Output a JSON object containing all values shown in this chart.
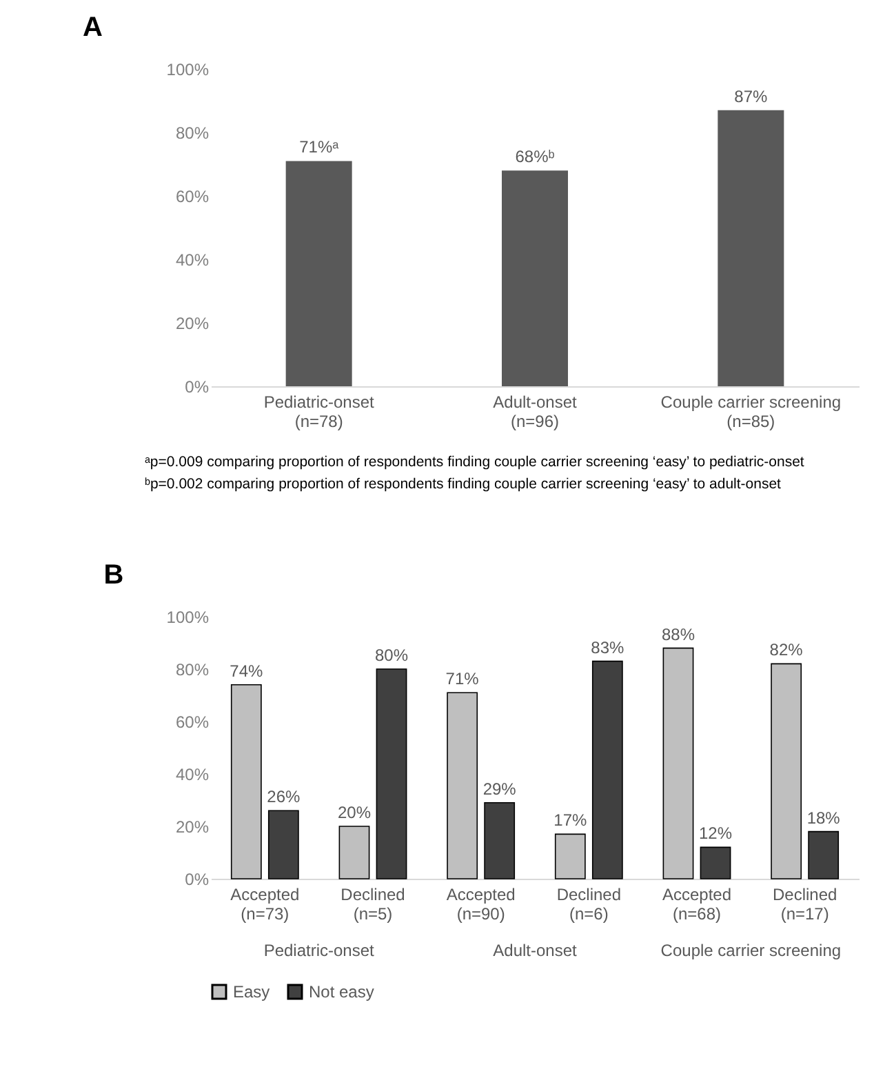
{
  "chart_data": [
    {
      "type": "bar",
      "title": "A",
      "categories": [
        "Pediatric-onset\n(n=78)",
        "Adult-onset\n(n=96)",
        "Couple carrier screening\n(n=85)"
      ],
      "values": [
        71,
        68,
        87
      ],
      "color": "#595959",
      "value_labels": [
        "71%ᵃ",
        "68%ᵇ",
        "87%"
      ],
      "ylim": [
        0,
        100
      ],
      "yticks": [
        {
          "value": 0,
          "label": "0%"
        },
        {
          "value": 20,
          "label": "20%"
        },
        {
          "value": 40,
          "label": "40%"
        },
        {
          "value": 60,
          "label": "60%"
        },
        {
          "value": 80,
          "label": "80%"
        },
        {
          "value": 100,
          "label": "100%"
        }
      ],
      "annotations": [
        "ᵃp=0.009 comparing proportion of respondents finding couple carrier screening ‘easy’ to pediatric-onset",
        "ᵇp=0.002 comparing proportion of respondents finding couple carrier screening ‘easy’ to adult-onset"
      ]
    },
    {
      "type": "bar",
      "title": "B",
      "categories": [
        "Accepted\n(n=73)",
        "Declined\n(n=5)",
        "Accepted\n(n=90)",
        "Declined\n(n=6)",
        "Accepted\n(n=68)",
        "Declined\n(n=17)"
      ],
      "series": [
        {
          "name": "Easy",
          "color": "#bfbfbf",
          "values": [
            74,
            20,
            71,
            17,
            88,
            82
          ],
          "value_labels": [
            "74%",
            "20%",
            "71%",
            "17%",
            "88%",
            "82%"
          ]
        },
        {
          "name": "Not easy",
          "color": "#404040",
          "values": [
            26,
            80,
            29,
            83,
            12,
            18
          ],
          "value_labels": [
            "26%",
            "80%",
            "29%",
            "83%",
            "12%",
            "18%"
          ]
        }
      ],
      "ylim": [
        0,
        100
      ],
      "yticks": [
        {
          "value": 0,
          "label": "0%"
        },
        {
          "value": 20,
          "label": "20%"
        },
        {
          "value": 40,
          "label": "40%"
        },
        {
          "value": 60,
          "label": "60%"
        },
        {
          "value": 80,
          "label": "80%"
        },
        {
          "value": 100,
          "label": "100%"
        }
      ],
      "legend": "bottom",
      "annotations": [
        "Pediatric-onset",
        "Adult-onset",
        "Couple carrier screening"
      ]
    }
  ]
}
